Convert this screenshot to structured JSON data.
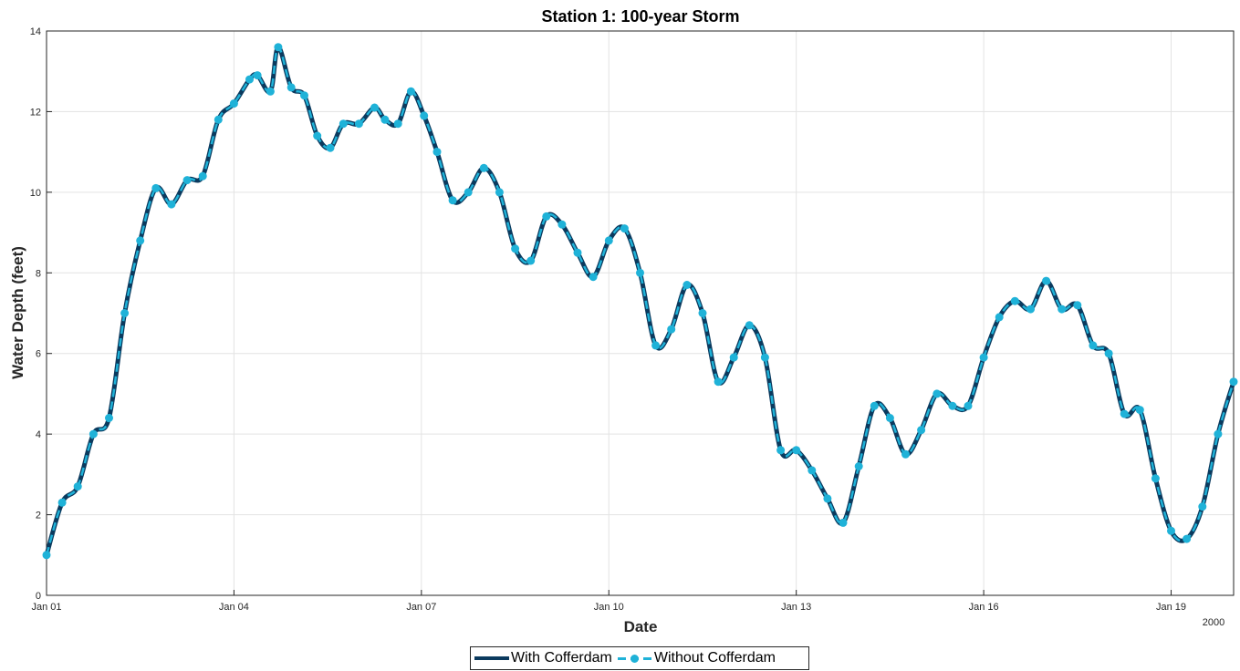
{
  "chart_data": {
    "type": "line",
    "title": "Station 1: 100-year Storm",
    "xlabel": "Date",
    "ylabel": "Water Depth (feet)",
    "x_start": "2000-01-01",
    "x_end": "2000-01-20",
    "ylim": [
      0,
      14
    ],
    "x_ticks": [
      {
        "date": "2000-01-01",
        "label": "Jan 01"
      },
      {
        "date": "2000-01-04",
        "label": "Jan 04"
      },
      {
        "date": "2000-01-07",
        "label": "Jan 07"
      },
      {
        "date": "2000-01-10",
        "label": "Jan 10"
      },
      {
        "date": "2000-01-13",
        "label": "Jan 13"
      },
      {
        "date": "2000-01-16",
        "label": "Jan 16"
      },
      {
        "date": "2000-01-19",
        "label": "Jan 19"
      }
    ],
    "x_year_label": "2000",
    "y_ticks": [
      0,
      2,
      4,
      6,
      8,
      10,
      12,
      14
    ],
    "grid": true,
    "legend_position": "bottom",
    "series": [
      {
        "name": "With Cofferdam",
        "color": "#0b3a5e",
        "style": "solid",
        "x": [
          "2000-01-01 00:00",
          "2000-01-01 06:00",
          "2000-01-01 12:00",
          "2000-01-01 18:00",
          "2000-01-02 00:00",
          "2000-01-02 06:00",
          "2000-01-02 12:00",
          "2000-01-02 18:00",
          "2000-01-03 00:00",
          "2000-01-03 06:00",
          "2000-01-03 12:00",
          "2000-01-03 18:00",
          "2000-01-04 00:00",
          "2000-01-04 06:00",
          "2000-01-04 09:00",
          "2000-01-04 14:00",
          "2000-01-04 17:00",
          "2000-01-04 22:00",
          "2000-01-05 03:00",
          "2000-01-05 08:00",
          "2000-01-05 13:00",
          "2000-01-05 18:00",
          "2000-01-06 00:00",
          "2000-01-06 06:00",
          "2000-01-06 10:00",
          "2000-01-06 15:00",
          "2000-01-06 20:00",
          "2000-01-07 01:00",
          "2000-01-07 06:00",
          "2000-01-07 12:00",
          "2000-01-07 18:00",
          "2000-01-08 00:00",
          "2000-01-08 06:00",
          "2000-01-08 12:00",
          "2000-01-08 18:00",
          "2000-01-09 00:00",
          "2000-01-09 06:00",
          "2000-01-09 12:00",
          "2000-01-09 18:00",
          "2000-01-10 00:00",
          "2000-01-10 06:00",
          "2000-01-10 12:00",
          "2000-01-10 18:00",
          "2000-01-11 00:00",
          "2000-01-11 06:00",
          "2000-01-11 12:00",
          "2000-01-11 18:00",
          "2000-01-12 00:00",
          "2000-01-12 06:00",
          "2000-01-12 12:00",
          "2000-01-12 18:00",
          "2000-01-13 00:00",
          "2000-01-13 06:00",
          "2000-01-13 12:00",
          "2000-01-13 18:00",
          "2000-01-14 00:00",
          "2000-01-14 06:00",
          "2000-01-14 12:00",
          "2000-01-14 18:00",
          "2000-01-15 00:00",
          "2000-01-15 06:00",
          "2000-01-15 12:00",
          "2000-01-15 18:00",
          "2000-01-16 00:00",
          "2000-01-16 06:00",
          "2000-01-16 12:00",
          "2000-01-16 18:00",
          "2000-01-17 00:00",
          "2000-01-17 06:00",
          "2000-01-17 12:00",
          "2000-01-17 18:00",
          "2000-01-18 00:00",
          "2000-01-18 06:00",
          "2000-01-18 12:00",
          "2000-01-18 18:00",
          "2000-01-19 00:00",
          "2000-01-19 06:00",
          "2000-01-19 12:00",
          "2000-01-19 18:00",
          "2000-01-20 00:00"
        ],
        "y": [
          1.0,
          2.3,
          2.7,
          4.0,
          4.4,
          7.0,
          8.8,
          10.1,
          9.7,
          10.3,
          10.4,
          11.8,
          12.2,
          12.8,
          12.9,
          12.5,
          13.6,
          12.6,
          12.4,
          11.4,
          11.1,
          11.7,
          11.7,
          12.1,
          11.8,
          11.7,
          12.5,
          11.9,
          11.0,
          9.8,
          10.0,
          10.6,
          10.0,
          8.6,
          8.3,
          9.4,
          9.2,
          8.5,
          7.9,
          8.8,
          9.1,
          8.0,
          6.2,
          6.6,
          7.7,
          7.0,
          5.3,
          5.9,
          6.7,
          5.9,
          3.6,
          3.6,
          3.1,
          2.4,
          1.8,
          3.2,
          4.7,
          4.4,
          3.5,
          4.1,
          5.0,
          4.7,
          4.7,
          5.9,
          6.9,
          7.3,
          7.1,
          7.8,
          7.1,
          7.2,
          6.2,
          6.0,
          4.5,
          4.6,
          2.9,
          1.6,
          1.4,
          2.2,
          4.0,
          5.3
        ]
      },
      {
        "name": "Without Cofferdam",
        "color": "#1fb2d8",
        "style": "dashed-marker",
        "x": [
          "2000-01-01 00:00",
          "2000-01-01 06:00",
          "2000-01-01 12:00",
          "2000-01-01 18:00",
          "2000-01-02 00:00",
          "2000-01-02 06:00",
          "2000-01-02 12:00",
          "2000-01-02 18:00",
          "2000-01-03 00:00",
          "2000-01-03 06:00",
          "2000-01-03 12:00",
          "2000-01-03 18:00",
          "2000-01-04 00:00",
          "2000-01-04 06:00",
          "2000-01-04 09:00",
          "2000-01-04 14:00",
          "2000-01-04 17:00",
          "2000-01-04 22:00",
          "2000-01-05 03:00",
          "2000-01-05 08:00",
          "2000-01-05 13:00",
          "2000-01-05 18:00",
          "2000-01-06 00:00",
          "2000-01-06 06:00",
          "2000-01-06 10:00",
          "2000-01-06 15:00",
          "2000-01-06 20:00",
          "2000-01-07 01:00",
          "2000-01-07 06:00",
          "2000-01-07 12:00",
          "2000-01-07 18:00",
          "2000-01-08 00:00",
          "2000-01-08 06:00",
          "2000-01-08 12:00",
          "2000-01-08 18:00",
          "2000-01-09 00:00",
          "2000-01-09 06:00",
          "2000-01-09 12:00",
          "2000-01-09 18:00",
          "2000-01-10 00:00",
          "2000-01-10 06:00",
          "2000-01-10 12:00",
          "2000-01-10 18:00",
          "2000-01-11 00:00",
          "2000-01-11 06:00",
          "2000-01-11 12:00",
          "2000-01-11 18:00",
          "2000-01-12 00:00",
          "2000-01-12 06:00",
          "2000-01-12 12:00",
          "2000-01-12 18:00",
          "2000-01-13 00:00",
          "2000-01-13 06:00",
          "2000-01-13 12:00",
          "2000-01-13 18:00",
          "2000-01-14 00:00",
          "2000-01-14 06:00",
          "2000-01-14 12:00",
          "2000-01-14 18:00",
          "2000-01-15 00:00",
          "2000-01-15 06:00",
          "2000-01-15 12:00",
          "2000-01-15 18:00",
          "2000-01-16 00:00",
          "2000-01-16 06:00",
          "2000-01-16 12:00",
          "2000-01-16 18:00",
          "2000-01-17 00:00",
          "2000-01-17 06:00",
          "2000-01-17 12:00",
          "2000-01-17 18:00",
          "2000-01-18 00:00",
          "2000-01-18 06:00",
          "2000-01-18 12:00",
          "2000-01-18 18:00",
          "2000-01-19 00:00",
          "2000-01-19 06:00",
          "2000-01-19 12:00",
          "2000-01-19 18:00",
          "2000-01-20 00:00"
        ],
        "y": [
          1.0,
          2.3,
          2.7,
          4.0,
          4.4,
          7.0,
          8.8,
          10.1,
          9.7,
          10.3,
          10.4,
          11.8,
          12.2,
          12.8,
          12.9,
          12.5,
          13.6,
          12.6,
          12.4,
          11.4,
          11.1,
          11.7,
          11.7,
          12.1,
          11.8,
          11.7,
          12.5,
          11.9,
          11.0,
          9.8,
          10.0,
          10.6,
          10.0,
          8.6,
          8.3,
          9.4,
          9.2,
          8.5,
          7.9,
          8.8,
          9.1,
          8.0,
          6.2,
          6.6,
          7.7,
          7.0,
          5.3,
          5.9,
          6.7,
          5.9,
          3.6,
          3.6,
          3.1,
          2.4,
          1.8,
          3.2,
          4.7,
          4.4,
          3.5,
          4.1,
          5.0,
          4.7,
          4.7,
          5.9,
          6.9,
          7.3,
          7.1,
          7.8,
          7.1,
          7.2,
          6.2,
          6.0,
          4.5,
          4.6,
          2.9,
          1.6,
          1.4,
          2.2,
          4.0,
          5.3
        ]
      }
    ]
  }
}
